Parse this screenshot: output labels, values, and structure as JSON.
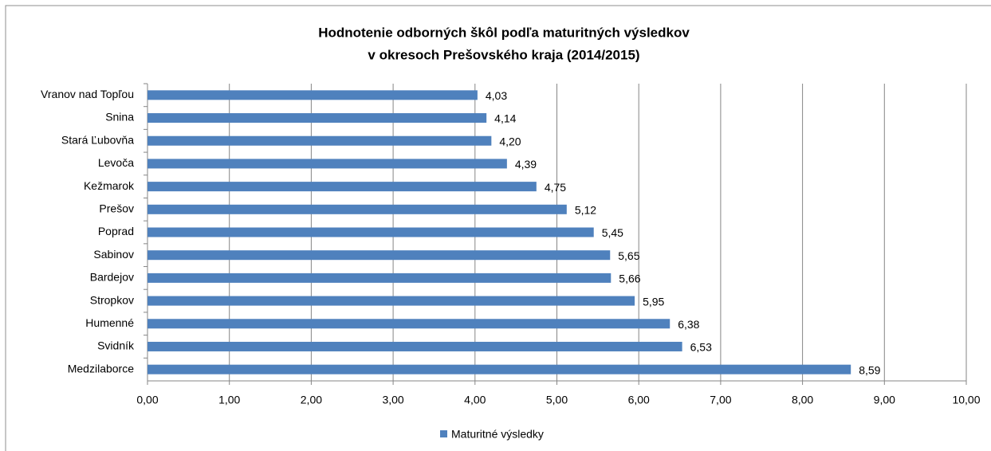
{
  "chart_data": {
    "type": "bar",
    "orientation": "horizontal",
    "title": [
      "Hodnotenie odborných škôl podľa  maturitných výsledkov",
      "v okresoch Prešovského kraja (2014/2015)"
    ],
    "categories": [
      "Vranov nad Topľou",
      "Snina",
      "Stará Ľubovňa",
      "Levoča",
      "Kežmarok",
      "Prešov",
      "Poprad",
      "Sabinov",
      "Bardejov",
      "Stropkov",
      "Humenné",
      "Svidník",
      "Medzilaborce"
    ],
    "series": [
      {
        "name": "Maturitné výsledky",
        "color": "#4f81bd",
        "values": [
          4.03,
          4.14,
          4.2,
          4.39,
          4.75,
          5.12,
          5.45,
          5.65,
          5.66,
          5.95,
          6.38,
          6.53,
          8.59
        ],
        "value_labels": [
          "4,03",
          "4,14",
          "4,20",
          "4,39",
          "4,75",
          "5,12",
          "5,45",
          "5,65",
          "5,66",
          "5,95",
          "6,38",
          "6,53",
          "8,59"
        ]
      }
    ],
    "xlim": [
      0,
      10
    ],
    "xticks": [
      {
        "value": 0,
        "label": "0,00"
      },
      {
        "value": 1,
        "label": "1,00"
      },
      {
        "value": 2,
        "label": "2,00"
      },
      {
        "value": 3,
        "label": "3,00"
      },
      {
        "value": 4,
        "label": "4,00"
      },
      {
        "value": 5,
        "label": "5,00"
      },
      {
        "value": 6,
        "label": "6,00"
      },
      {
        "value": 7,
        "label": "7,00"
      },
      {
        "value": 8,
        "label": "8,00"
      },
      {
        "value": 9,
        "label": "9,00"
      },
      {
        "value": 10,
        "label": "10,00"
      }
    ],
    "grid": true,
    "legend": "bottom"
  }
}
